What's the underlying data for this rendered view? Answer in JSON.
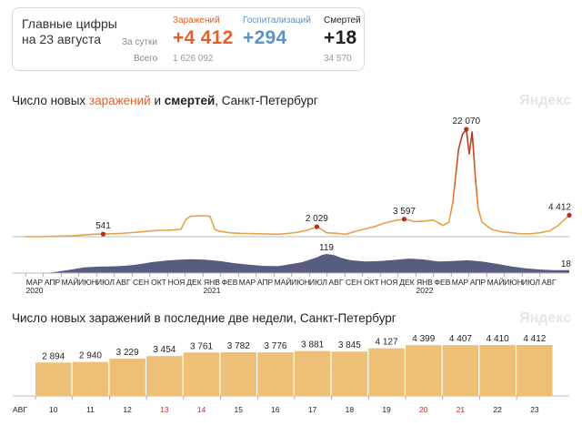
{
  "summary": {
    "title": "Главные цифры на 23 августа",
    "row_day": "За сутки",
    "row_total": "Всего",
    "infections": {
      "label": "Заражений",
      "day": "+4 412",
      "total": "1 626 092",
      "color": "#e0612b"
    },
    "hospital": {
      "label": "Госпитализаций",
      "day": "+294",
      "total": "",
      "color": "#5b93c4"
    },
    "deaths": {
      "label": "Смертей",
      "day": "+18",
      "total": "34 570",
      "color": "#222222"
    }
  },
  "watermark": "Яндекс",
  "chart_data": [
    {
      "type": "area",
      "title_parts": [
        "Число новых ",
        "заражений",
        " и ",
        "смертей",
        ", Санкт-Петербург"
      ],
      "series": [
        {
          "name": "заражения",
          "color": "#e8a24a",
          "points": [
            [
              0,
              0
            ],
            [
              15,
              3
            ],
            [
              30,
              80
            ],
            [
              50,
              200
            ],
            [
              60,
              360
            ],
            [
              70,
              500
            ],
            [
              80,
              541
            ],
            [
              90,
              600
            ],
            [
              100,
              700
            ],
            [
              110,
              850
            ],
            [
              120,
              1000
            ],
            [
              130,
              1200
            ],
            [
              140,
              1300
            ],
            [
              150,
              1350
            ],
            [
              160,
              1500
            ],
            [
              165,
              3500
            ],
            [
              170,
              4200
            ],
            [
              180,
              4300
            ],
            [
              190,
              4200
            ],
            [
              195,
              1500
            ],
            [
              200,
              1100
            ],
            [
              210,
              800
            ],
            [
              220,
              700
            ],
            [
              230,
              650
            ],
            [
              240,
              600
            ],
            [
              250,
              550
            ],
            [
              260,
              500
            ],
            [
              270,
              650
            ],
            [
              280,
              900
            ],
            [
              290,
              1300
            ],
            [
              300,
              2029
            ],
            [
              305,
              1500
            ],
            [
              310,
              800
            ],
            [
              320,
              700
            ],
            [
              330,
              500
            ],
            [
              340,
              1100
            ],
            [
              350,
              1600
            ],
            [
              360,
              2100
            ],
            [
              370,
              2800
            ],
            [
              380,
              3300
            ],
            [
              390,
              3597
            ],
            [
              395,
              3400
            ],
            [
              400,
              3100
            ],
            [
              410,
              3200
            ],
            [
              420,
              3400
            ],
            [
              425,
              2900
            ],
            [
              430,
              2300
            ],
            [
              436,
              3000
            ],
            [
              440,
              7000
            ],
            [
              446,
              18000
            ],
            [
              450,
              21000
            ],
            [
              454,
              22070
            ],
            [
              457,
              17000
            ],
            [
              460,
              21500
            ],
            [
              463,
              13000
            ],
            [
              466,
              6000
            ],
            [
              470,
              3000
            ],
            [
              480,
              1500
            ],
            [
              490,
              1000
            ],
            [
              500,
              800
            ],
            [
              510,
              600
            ],
            [
              520,
              600
            ],
            [
              530,
              800
            ],
            [
              540,
              1200
            ],
            [
              548,
              2200
            ],
            [
              555,
              3500
            ],
            [
              560,
              4412
            ]
          ]
        },
        {
          "name": "смерти",
          "color": "#4a4e75",
          "points": [
            [
              0,
              0
            ],
            [
              20,
              0
            ],
            [
              30,
              6
            ],
            [
              50,
              25
            ],
            [
              60,
              35
            ],
            [
              75,
              40
            ],
            [
              90,
              42
            ],
            [
              100,
              45
            ],
            [
              110,
              50
            ],
            [
              120,
              58
            ],
            [
              130,
              68
            ],
            [
              145,
              78
            ],
            [
              155,
              82
            ],
            [
              170,
              86
            ],
            [
              185,
              84
            ],
            [
              200,
              75
            ],
            [
              215,
              62
            ],
            [
              230,
              52
            ],
            [
              245,
              45
            ],
            [
              260,
              43
            ],
            [
              270,
              52
            ],
            [
              285,
              68
            ],
            [
              300,
              98
            ],
            [
              305,
              112
            ],
            [
              310,
              119
            ],
            [
              318,
              112
            ],
            [
              325,
              95
            ],
            [
              335,
              80
            ],
            [
              350,
              72
            ],
            [
              365,
              75
            ],
            [
              380,
              82
            ],
            [
              395,
              90
            ],
            [
              410,
              85
            ],
            [
              425,
              72
            ],
            [
              440,
              75
            ],
            [
              455,
              80
            ],
            [
              470,
              72
            ],
            [
              485,
              58
            ],
            [
              500,
              42
            ],
            [
              515,
              30
            ],
            [
              530,
              22
            ],
            [
              545,
              18
            ],
            [
              560,
              18
            ]
          ]
        }
      ],
      "annotations": [
        {
          "x": 80,
          "value": 541,
          "label": "541"
        },
        {
          "x": 300,
          "value": 2029,
          "label": "2 029"
        },
        {
          "x": 390,
          "value": 3597,
          "label": "3 597"
        },
        {
          "x": 454,
          "value": 22070,
          "label": "22 070"
        },
        {
          "x": 560,
          "value": 4412,
          "label": "4 412"
        }
      ],
      "death_annotations": [
        {
          "x": 310,
          "value": 119,
          "label": "119"
        },
        {
          "x": 560,
          "value": 18,
          "label": "18"
        }
      ],
      "x_ticks": [
        "МАР",
        "АПР",
        "МАЙ",
        "ИЮН",
        "ИЮЛ",
        "АВГ",
        "СЕН",
        "ОКТ",
        "НОЯ",
        "ДЕК",
        "ЯНВ",
        "ФЕВ",
        "МАР",
        "АПР",
        "МАЙ",
        "ИЮН",
        "ИЮЛ",
        "АВГ",
        "СЕН",
        "ОКТ",
        "НОЯ",
        "ДЕК",
        "ЯНВ",
        "ФЕВ",
        "МАР",
        "АПР",
        "МАЙ",
        "ИЮН",
        "ИЮЛ",
        "АВГ"
      ],
      "x_tick_years": {
        "0": "2020",
        "10": "2021",
        "22": "2022"
      },
      "x_range": [
        0,
        560
      ],
      "infections_ylim": [
        0,
        22070
      ],
      "deaths_ylim": [
        0,
        119
      ]
    },
    {
      "type": "bar",
      "title": "Число новых заражений в последние две недели, Санкт-Петербург",
      "month_label": "АВГ",
      "categories": [
        "10",
        "11",
        "12",
        "13",
        "14",
        "15",
        "16",
        "17",
        "18",
        "19",
        "20",
        "21",
        "22",
        "23"
      ],
      "weekend": [
        "13",
        "14",
        "20",
        "21"
      ],
      "values": [
        2894,
        2940,
        3229,
        3454,
        3761,
        3782,
        3776,
        3881,
        3845,
        4127,
        4399,
        4407,
        4410,
        4412
      ],
      "labels": [
        "2 894",
        "2 940",
        "3 229",
        "3 454",
        "3 761",
        "3 782",
        "3 776",
        "3 881",
        "3 845",
        "4 127",
        "4 399",
        "4 407",
        "4 410",
        "4 412"
      ],
      "color": "#eebf76",
      "ylim": [
        0,
        4412
      ]
    }
  ]
}
